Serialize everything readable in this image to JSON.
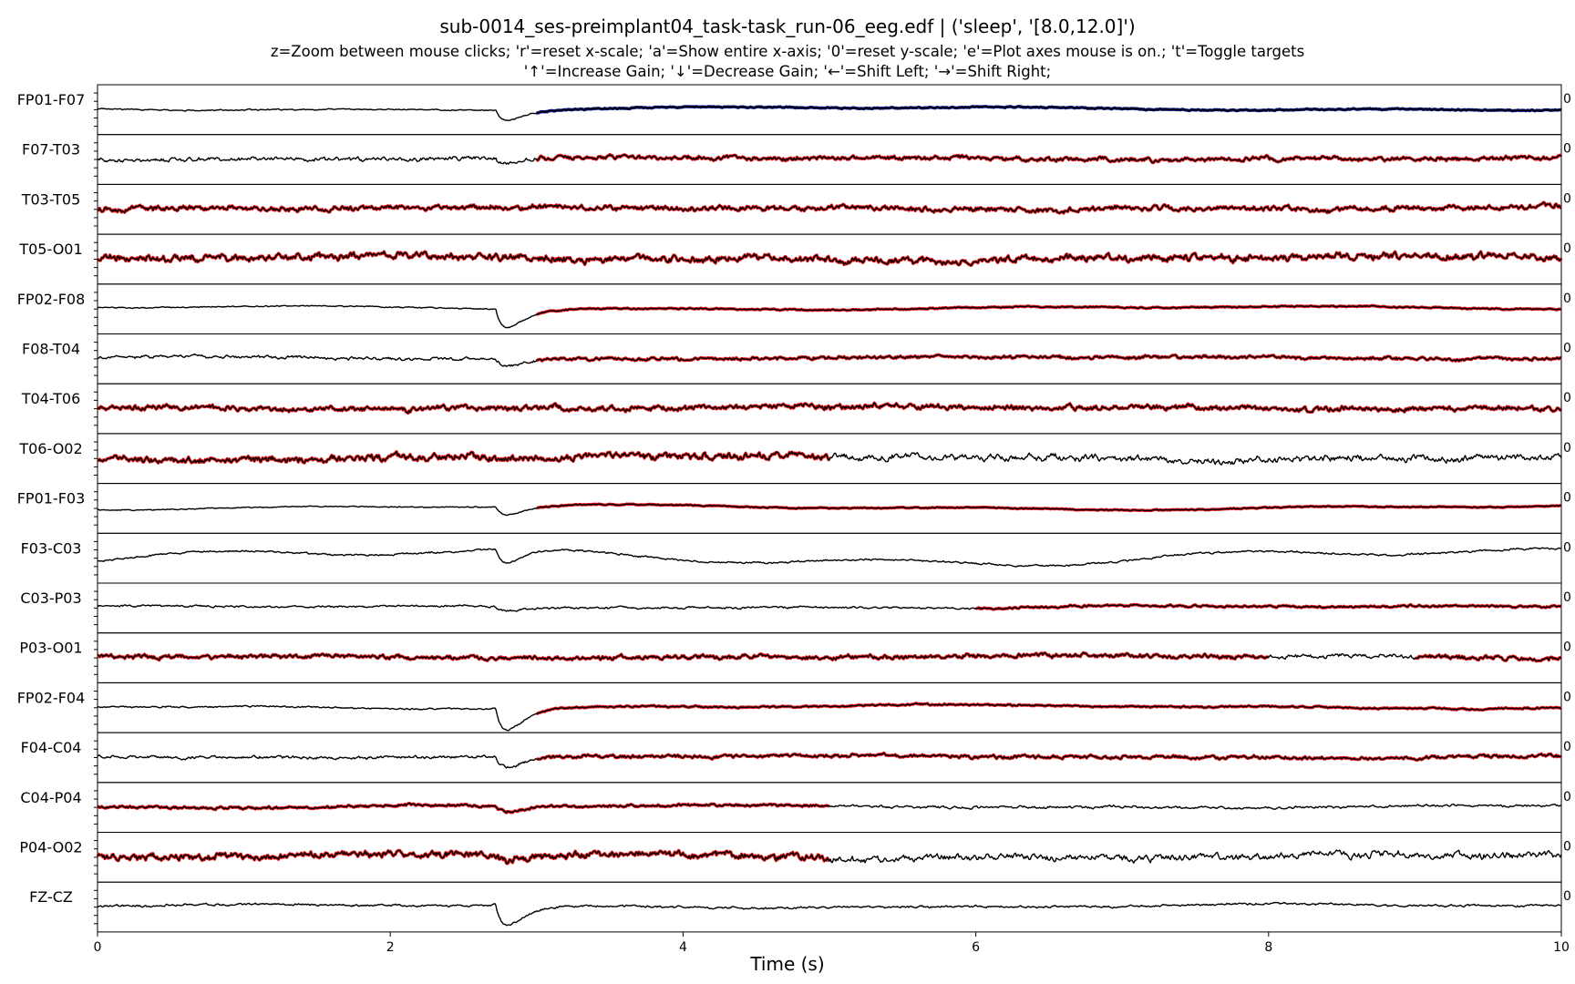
{
  "title": "sub-0014_ses-preimplant04_task-task_run-06_eeg.edf | ('sleep', '[8.0,12.0]')",
  "help_line_1": "z=Zoom between mouse clicks; 'r'=reset x-scale; 'a'=Show entire x-axis; '0'=reset y-scale; 'e'=Plot axes mouse is on.; 't'=Toggle targets",
  "help_line_2": "'↑'=Increase Gain; '↓'=Decrease Gain; '←'=Shift Left; '→'=Shift Right;",
  "chart_data": {
    "type": "line",
    "xlabel": "Time (s)",
    "xlim": [
      0,
      10
    ],
    "xticks": [
      0,
      2,
      4,
      6,
      8,
      10
    ],
    "signal_color": "#000000",
    "target_colors": {
      "red": "#e31a1c",
      "blue": "#08127a"
    },
    "right_edge_tick_label": "0",
    "channels": [
      {
        "name": "FP01-F07",
        "highlights": [
          {
            "start": 3.0,
            "end": 10.0,
            "color": "blue"
          }
        ]
      },
      {
        "name": "F07-T03",
        "highlights": [
          {
            "start": 3.0,
            "end": 10.0,
            "color": "red"
          }
        ]
      },
      {
        "name": "T03-T05",
        "highlights": [
          {
            "start": 0.0,
            "end": 10.0,
            "color": "red"
          }
        ]
      },
      {
        "name": "T05-O01",
        "highlights": [
          {
            "start": 0.0,
            "end": 10.0,
            "color": "red"
          }
        ]
      },
      {
        "name": "FP02-F08",
        "highlights": [
          {
            "start": 3.0,
            "end": 10.0,
            "color": "red"
          }
        ]
      },
      {
        "name": "F08-T04",
        "highlights": [
          {
            "start": 3.0,
            "end": 10.0,
            "color": "red"
          }
        ]
      },
      {
        "name": "T04-T06",
        "highlights": [
          {
            "start": 0.0,
            "end": 10.0,
            "color": "red"
          }
        ]
      },
      {
        "name": "T06-O02",
        "highlights": [
          {
            "start": 0.0,
            "end": 5.0,
            "color": "red"
          }
        ]
      },
      {
        "name": "FP01-F03",
        "highlights": [
          {
            "start": 3.0,
            "end": 10.0,
            "color": "red"
          }
        ]
      },
      {
        "name": "F03-C03",
        "highlights": []
      },
      {
        "name": "C03-P03",
        "highlights": [
          {
            "start": 6.0,
            "end": 10.0,
            "color": "red"
          }
        ]
      },
      {
        "name": "P03-O01",
        "highlights": [
          {
            "start": 0.0,
            "end": 8.0,
            "color": "red"
          },
          {
            "start": 9.0,
            "end": 10.0,
            "color": "red"
          }
        ]
      },
      {
        "name": "FP02-F04",
        "highlights": [
          {
            "start": 3.0,
            "end": 10.0,
            "color": "red"
          }
        ]
      },
      {
        "name": "F04-C04",
        "highlights": [
          {
            "start": 3.0,
            "end": 10.0,
            "color": "red"
          }
        ]
      },
      {
        "name": "C04-P04",
        "highlights": [
          {
            "start": 0.0,
            "end": 5.0,
            "color": "red"
          }
        ]
      },
      {
        "name": "P04-O02",
        "highlights": [
          {
            "start": 0.0,
            "end": 5.0,
            "color": "red"
          }
        ]
      },
      {
        "name": "FZ-CZ",
        "highlights": []
      }
    ]
  }
}
